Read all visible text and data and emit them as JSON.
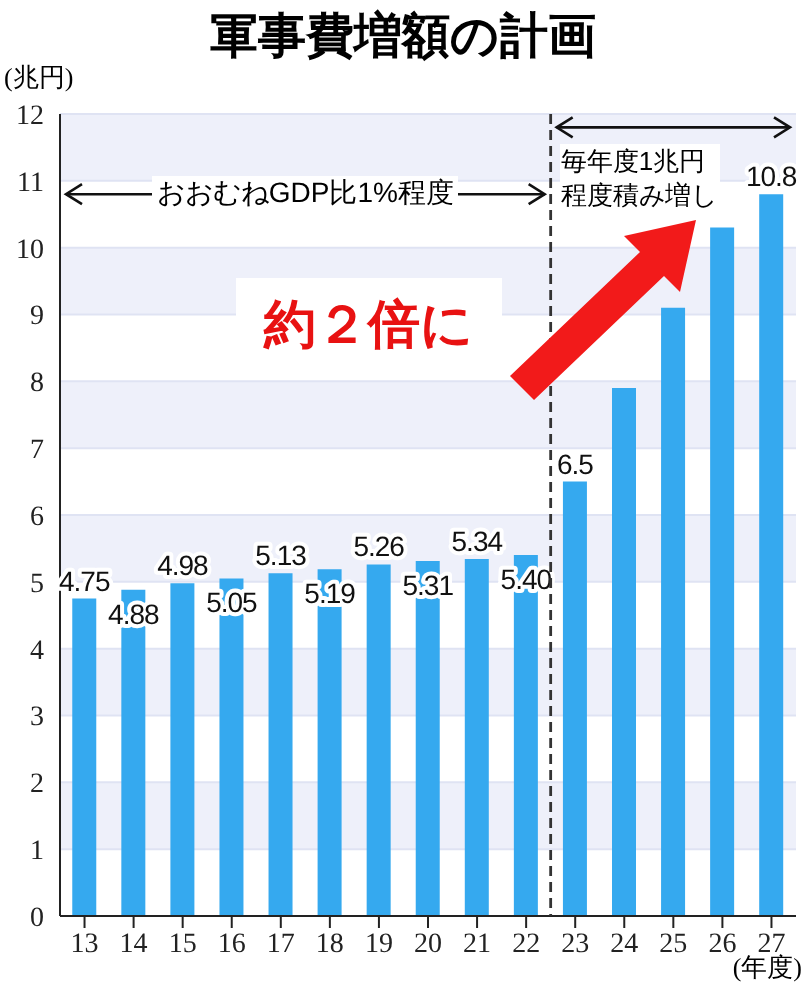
{
  "chart_data": {
    "type": "bar",
    "title": "軍事費増額の計画",
    "ylabel": "(兆円)",
    "xlabel": "(年度)",
    "categories": [
      "13",
      "14",
      "15",
      "16",
      "17",
      "18",
      "19",
      "20",
      "21",
      "22",
      "23",
      "24",
      "25",
      "26",
      "27"
    ],
    "values": [
      4.75,
      4.88,
      4.98,
      5.05,
      5.13,
      5.19,
      5.26,
      5.31,
      5.34,
      5.4,
      6.5,
      7.9,
      9.1,
      10.3,
      10.8
    ],
    "value_labels": [
      "4.75",
      "4.88",
      "4.98",
      "5.05",
      "5.13",
      "5.19",
      "5.26",
      "5.31",
      "5.34",
      "5.40",
      "6.5",
      null,
      null,
      null,
      "10.8"
    ],
    "color": "#35a9ef",
    "ylim": [
      0,
      12
    ],
    "yticks": [
      0,
      1,
      2,
      3,
      4,
      5,
      6,
      7,
      8,
      9,
      10,
      11,
      12
    ],
    "grid": "y",
    "annotations": [
      "おおむねGDP比1%程度",
      "毎年度1兆円程度積み増し",
      "約２倍に"
    ]
  }
}
